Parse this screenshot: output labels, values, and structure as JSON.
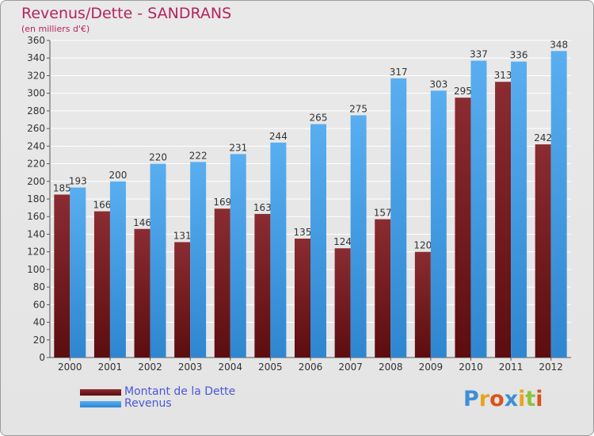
{
  "chart_data": {
    "type": "bar",
    "title": "Revenus/Dette - SANDRANS",
    "subtitle": "(en milliers d'€)",
    "categories": [
      "2000",
      "2001",
      "2002",
      "2003",
      "2004",
      "2005",
      "2006",
      "2007",
      "2008",
      "2009",
      "2010",
      "2011",
      "2012"
    ],
    "series": [
      {
        "name": "Montant de la Dette",
        "color": "#7a1c1e",
        "values": [
          185,
          166,
          146,
          131,
          169,
          163,
          135,
          124,
          157,
          120,
          295,
          313,
          242
        ]
      },
      {
        "name": "Revenus",
        "color": "#4aa3e8",
        "values": [
          193,
          200,
          220,
          222,
          231,
          244,
          265,
          275,
          317,
          303,
          337,
          336,
          348
        ]
      }
    ],
    "ylim": [
      0,
      360
    ],
    "ytick_step": 20,
    "grid": true,
    "legend_position": "bottom-left"
  },
  "branding": {
    "logo_text": "Proxiti",
    "logo_colors": [
      "#3d8fd6",
      "#e8a31f",
      "#d9531e",
      "#3d8fd6",
      "#e8a31f",
      "#8cc43a",
      "#d9531e"
    ]
  }
}
